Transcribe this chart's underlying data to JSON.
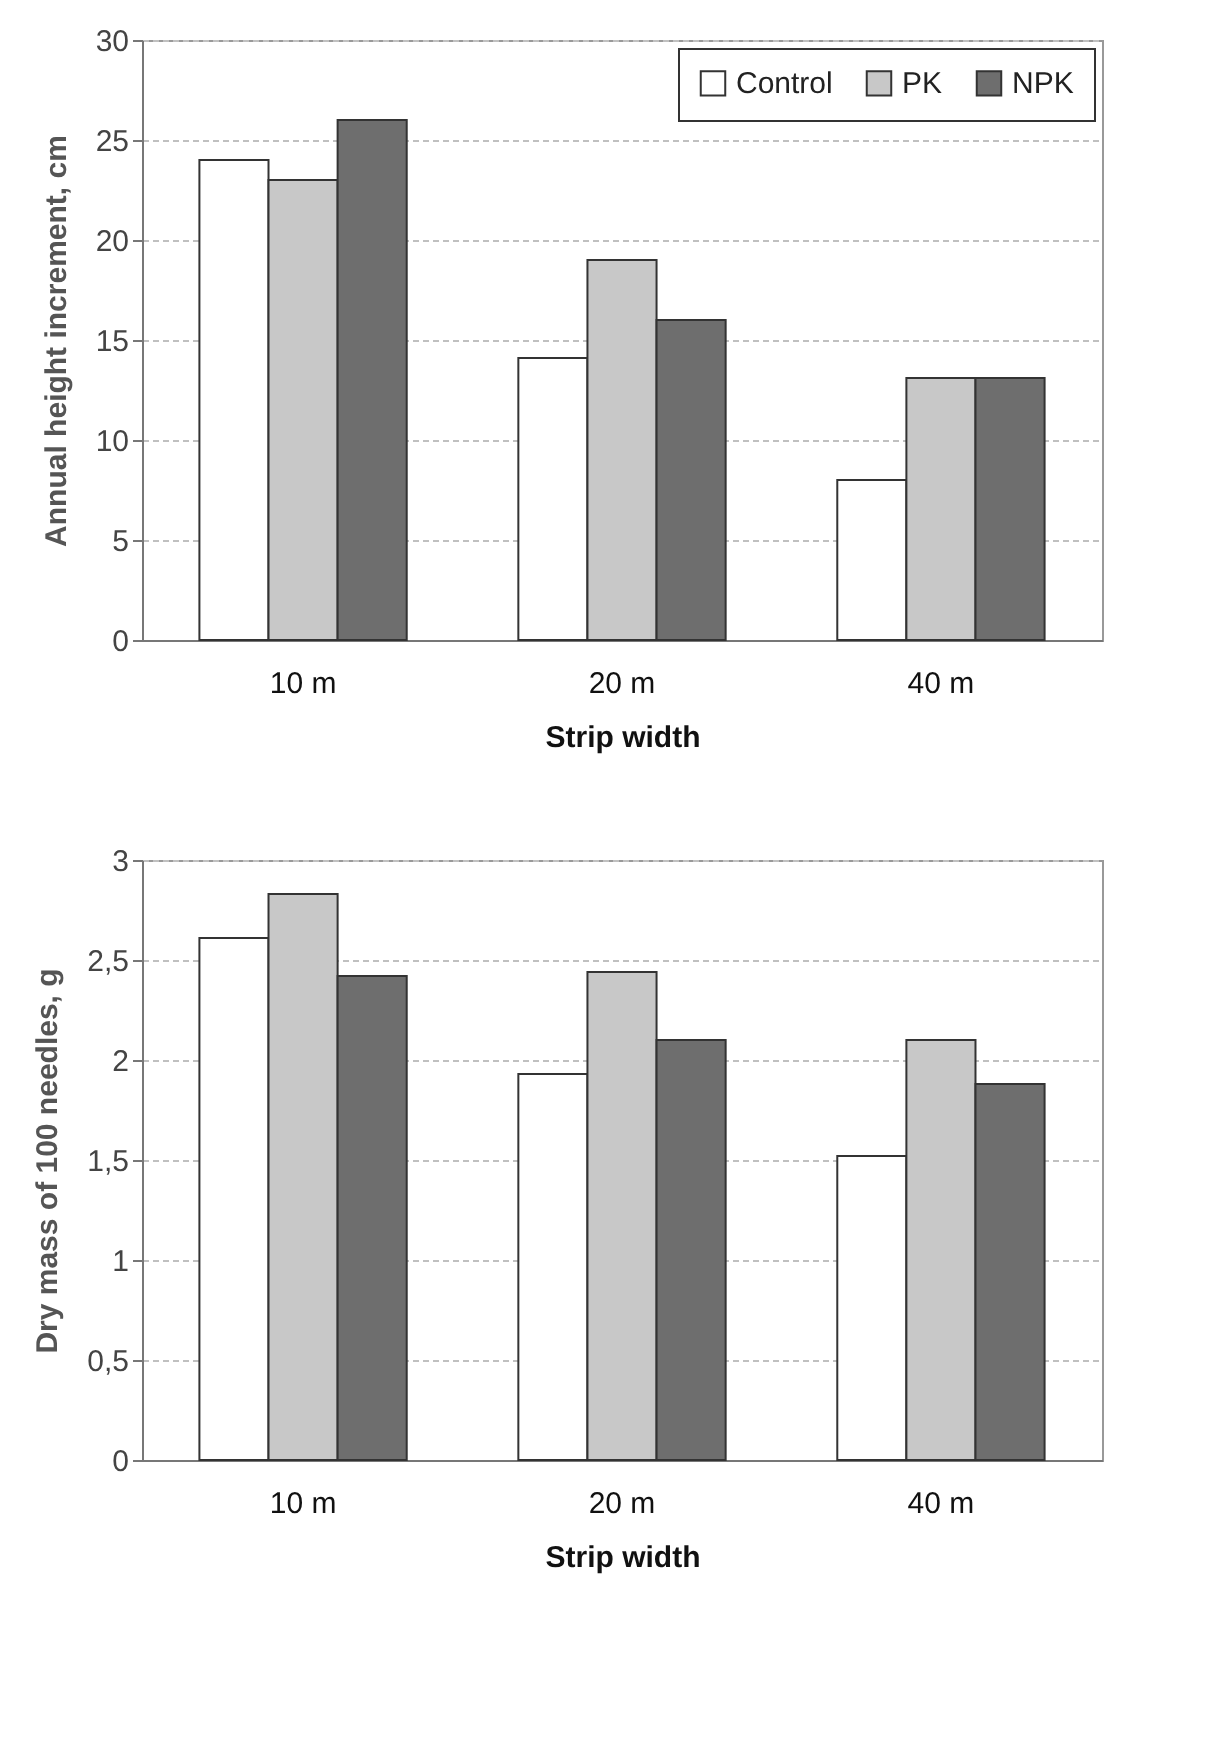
{
  "chart_data": [
    {
      "type": "bar",
      "xlabel": "Strip width",
      "ylabel": "Annual height increment, cm",
      "categories": [
        "10 m",
        "20 m",
        "40 m"
      ],
      "series": [
        {
          "name": "Control",
          "color": "#ffffff",
          "values": [
            24,
            14.1,
            8
          ]
        },
        {
          "name": "PK",
          "color": "#c8c8c8",
          "values": [
            23,
            19,
            13.1
          ]
        },
        {
          "name": "NPK",
          "color": "#6e6e6e",
          "values": [
            26,
            16,
            13.1
          ]
        }
      ],
      "ylim": [
        0,
        30
      ],
      "yticks": [
        0,
        5,
        10,
        15,
        20,
        25,
        30
      ],
      "grid": "y",
      "legend": "top right"
    },
    {
      "type": "bar",
      "xlabel": "Strip width",
      "ylabel": "Dry mass  of 100 needles, g",
      "categories": [
        "10 m",
        "20 m",
        "40 m"
      ],
      "series": [
        {
          "name": "Control",
          "color": "#ffffff",
          "values": [
            2.61,
            1.93,
            1.52
          ]
        },
        {
          "name": "PK",
          "color": "#c8c8c8",
          "values": [
            2.83,
            2.44,
            2.1
          ]
        },
        {
          "name": "NPK",
          "color": "#6e6e6e",
          "values": [
            2.42,
            2.1,
            1.88
          ]
        }
      ],
      "ylim": [
        0,
        3
      ],
      "yticks": [
        0,
        {
          "value": 0.5,
          "label": "0,5"
        },
        1,
        {
          "value": 1.5,
          "label": "1,5"
        },
        2,
        {
          "value": 2.5,
          "label": "2,5"
        },
        3
      ],
      "grid": "y",
      "legend": "top right"
    }
  ]
}
